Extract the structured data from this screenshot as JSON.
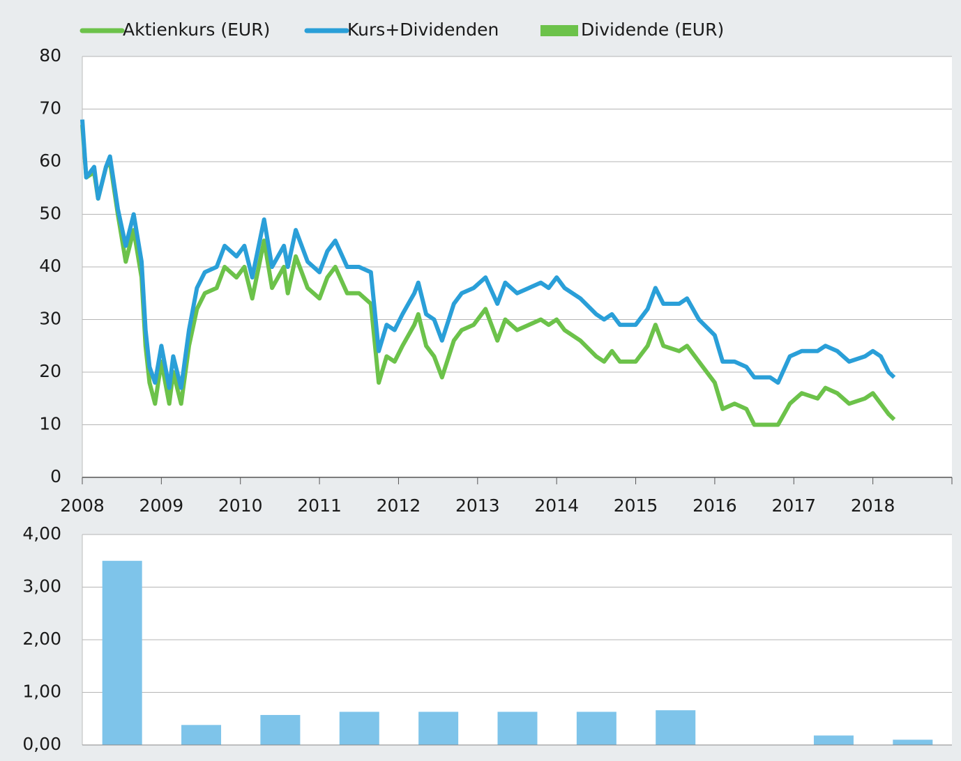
{
  "chart_data": [
    {
      "type": "line",
      "x": [
        2008.0,
        2008.05,
        2008.15,
        2008.2,
        2008.3,
        2008.35,
        2008.45,
        2008.55,
        2008.65,
        2008.75,
        2008.8,
        2008.85,
        2008.92,
        2009.0,
        2009.1,
        2009.15,
        2009.25,
        2009.35,
        2009.45,
        2009.55,
        2009.7,
        2009.8,
        2009.95,
        2010.05,
        2010.15,
        2010.3,
        2010.4,
        2010.55,
        2010.6,
        2010.7,
        2010.85,
        2011.0,
        2011.1,
        2011.2,
        2011.35,
        2011.5,
        2011.65,
        2011.75,
        2011.85,
        2011.95,
        2012.05,
        2012.2,
        2012.25,
        2012.35,
        2012.45,
        2012.55,
        2012.7,
        2012.8,
        2012.95,
        2013.1,
        2013.25,
        2013.35,
        2013.5,
        2013.65,
        2013.8,
        2013.9,
        2014.0,
        2014.1,
        2014.3,
        2014.5,
        2014.6,
        2014.7,
        2014.8,
        2015.0,
        2015.15,
        2015.25,
        2015.35,
        2015.55,
        2015.65,
        2015.8,
        2016.0,
        2016.1,
        2016.25,
        2016.4,
        2016.5,
        2016.7,
        2016.8,
        2016.95,
        2017.1,
        2017.3,
        2017.4,
        2017.55,
        2017.7,
        2017.9,
        2018.0,
        2018.1,
        2018.2,
        2018.27
      ],
      "series": [
        {
          "name": "Aktienkurs (EUR)",
          "color": "#6cc24a",
          "values": [
            67,
            57,
            58,
            53,
            59,
            60,
            50,
            41,
            47,
            38,
            25,
            18,
            14,
            22,
            14,
            20,
            14,
            25,
            32,
            35,
            36,
            40,
            38,
            40,
            34,
            45,
            36,
            40,
            35,
            42,
            36,
            34,
            38,
            40,
            35,
            35,
            33,
            18,
            23,
            22,
            25,
            29,
            31,
            25,
            23,
            19,
            26,
            28,
            29,
            32,
            26,
            30,
            28,
            29,
            30,
            29,
            30,
            28,
            26,
            23,
            22,
            24,
            22,
            22,
            25,
            29,
            25,
            24,
            25,
            22,
            18,
            13,
            14,
            13,
            10,
            10,
            10,
            14,
            16,
            15,
            17,
            16,
            14,
            15,
            16,
            14,
            12,
            11
          ]
        },
        {
          "name": "Kurs+Dividenden",
          "color": "#2a9fd8",
          "values": [
            68,
            57,
            59,
            53,
            59,
            61,
            51,
            44,
            50,
            41,
            28,
            21,
            18,
            25,
            17,
            23,
            17,
            28,
            36,
            39,
            40,
            44,
            42,
            44,
            38,
            49,
            40,
            44,
            40,
            47,
            41,
            39,
            43,
            45,
            40,
            40,
            39,
            24,
            29,
            28,
            31,
            35,
            37,
            31,
            30,
            26,
            33,
            35,
            36,
            38,
            33,
            37,
            35,
            36,
            37,
            36,
            38,
            36,
            34,
            31,
            30,
            31,
            29,
            29,
            32,
            36,
            33,
            33,
            34,
            30,
            27,
            22,
            22,
            21,
            19,
            19,
            18,
            23,
            24,
            24,
            25,
            24,
            22,
            23,
            24,
            23,
            20,
            19
          ]
        }
      ],
      "xlim": [
        2008,
        2019
      ],
      "xticks": [
        2008,
        2009,
        2010,
        2011,
        2012,
        2013,
        2014,
        2015,
        2016,
        2017,
        2018
      ],
      "ylim": [
        0,
        80
      ],
      "yticks": [
        0,
        10,
        20,
        30,
        40,
        50,
        60,
        70,
        80
      ],
      "grid": true
    },
    {
      "type": "bar",
      "categories": [
        null,
        null,
        null,
        null,
        null,
        null,
        null,
        null,
        null,
        null,
        null
      ],
      "series": [
        {
          "name": "Dividende (EUR)",
          "color": "#7ec4ea",
          "legend_color": "#6cc24a",
          "values": [
            3.5,
            0.38,
            0.57,
            0.63,
            0.63,
            0.63,
            0.63,
            0.66,
            0,
            0.18,
            0.1
          ]
        }
      ],
      "ylim": [
        0,
        4
      ],
      "yticks": [
        {
          "value": 0,
          "label": "0,00"
        },
        {
          "value": 1,
          "label": "1,00"
        },
        {
          "value": 2,
          "label": "2,00"
        },
        {
          "value": 3,
          "label": "3,00"
        },
        {
          "value": 4,
          "label": "4,00"
        }
      ],
      "grid": true
    }
  ]
}
